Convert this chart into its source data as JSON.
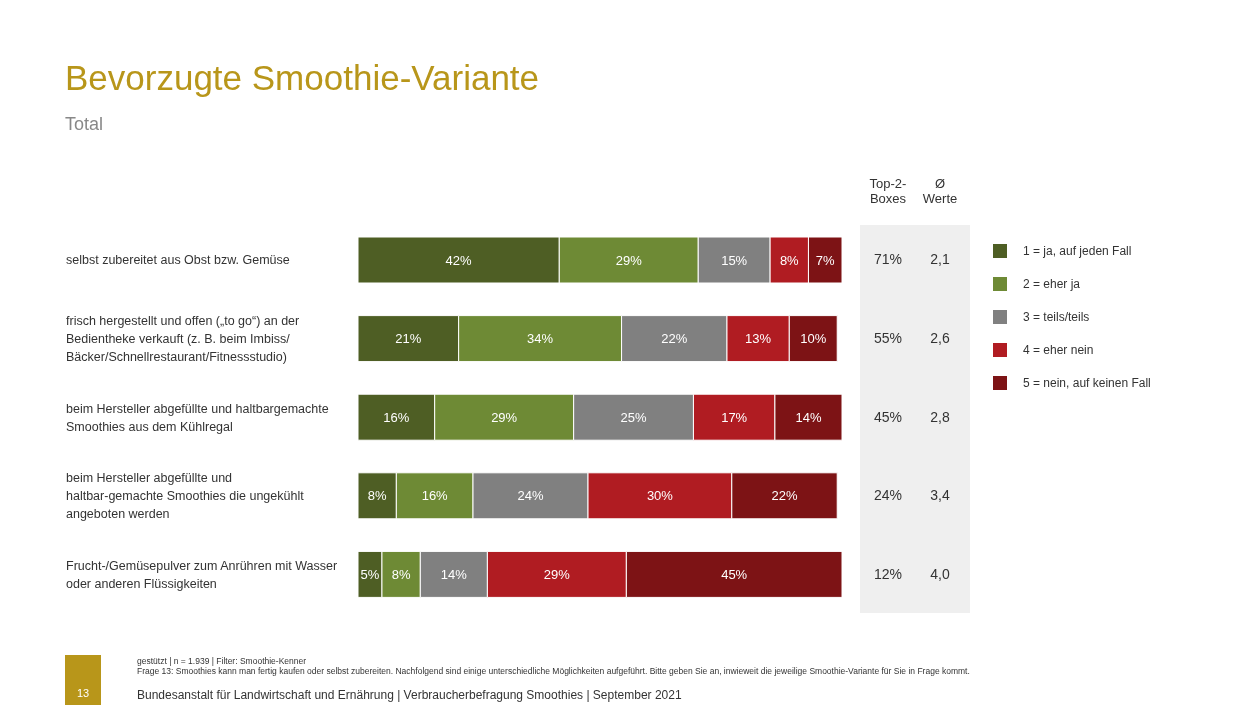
{
  "chart_data": {
    "type": "bar",
    "orientation": "horizontal",
    "stacked": true,
    "title": "Bevorzugte Smoothie-Variante",
    "subtitle": "Total",
    "categories": [
      "selbst zubereitet aus Obst bzw. Gemüse",
      "frisch hergestellt und offen („to go“) an der Bedientheke verkauft (z. B. beim Imbiss/ Bäcker/Schnellrestaurant/Fitnessstudio)",
      "beim Hersteller abgefüllte und haltbargemachte Smoothies aus dem Kühlregal",
      "beim Hersteller abgefüllte und haltbar-gemachte Smoothies die ungekühlt angeboten werden",
      "Frucht-/Gemüsepulver zum Anrühren mit Wasser oder anderen Flüssigkeiten"
    ],
    "series": [
      {
        "name": "1 = ja, auf jeden Fall",
        "color": "#4e5e24",
        "values": [
          42,
          21,
          16,
          8,
          5
        ],
        "value_labels": [
          "42%",
          "21%",
          "16%",
          "8%",
          "5%"
        ]
      },
      {
        "name": "2 = eher ja",
        "color": "#6e8a35",
        "values": [
          29,
          34,
          29,
          16,
          8
        ],
        "value_labels": [
          "29%",
          "34%",
          "29%",
          "16%",
          "8%"
        ]
      },
      {
        "name": "3 = teils/teils",
        "color": "#808080",
        "values": [
          15,
          22,
          25,
          24,
          14
        ],
        "value_labels": [
          "15%",
          "22%",
          "25%",
          "24%",
          "14%"
        ]
      },
      {
        "name": "4 = eher nein",
        "color": "#b01c22",
        "values": [
          8,
          13,
          17,
          30,
          29
        ],
        "value_labels": [
          "8%",
          "13%",
          "17%",
          "30%",
          "29%"
        ]
      },
      {
        "name": "5 = nein, auf keinen Fall",
        "color": "#7d1315",
        "values": [
          7,
          10,
          14,
          22,
          45
        ],
        "value_labels": [
          "7%",
          "10%",
          "14%",
          "22%",
          "45%"
        ]
      }
    ],
    "tick_labels": "y",
    "grid": false,
    "legend": "right",
    "annotations": [
      "Top-2-Boxes",
      "Ø Werte",
      "71%",
      "2,1",
      "55%",
      "2,6",
      "45%",
      "2,8",
      "24%",
      "3,4",
      "12%",
      "4,0",
      "gestützt | n = 1.939 | Filter: Smoothie-Kenner",
      "Frage 13: Smoothies kann man fertig kaufen oder selbst zubereiten. Nachfolgend sind einige unterschiedliche Möglichkeiten aufgeführt. Bitte geben Sie an, inwieweit die jeweilige Smoothie-Variante für Sie in Frage kommt.",
      "13",
      "Bundesanstalt für Landwirtschaft und Ernährung | Verbraucherbefragung Smoothies | September 2021"
    ]
  }
}
